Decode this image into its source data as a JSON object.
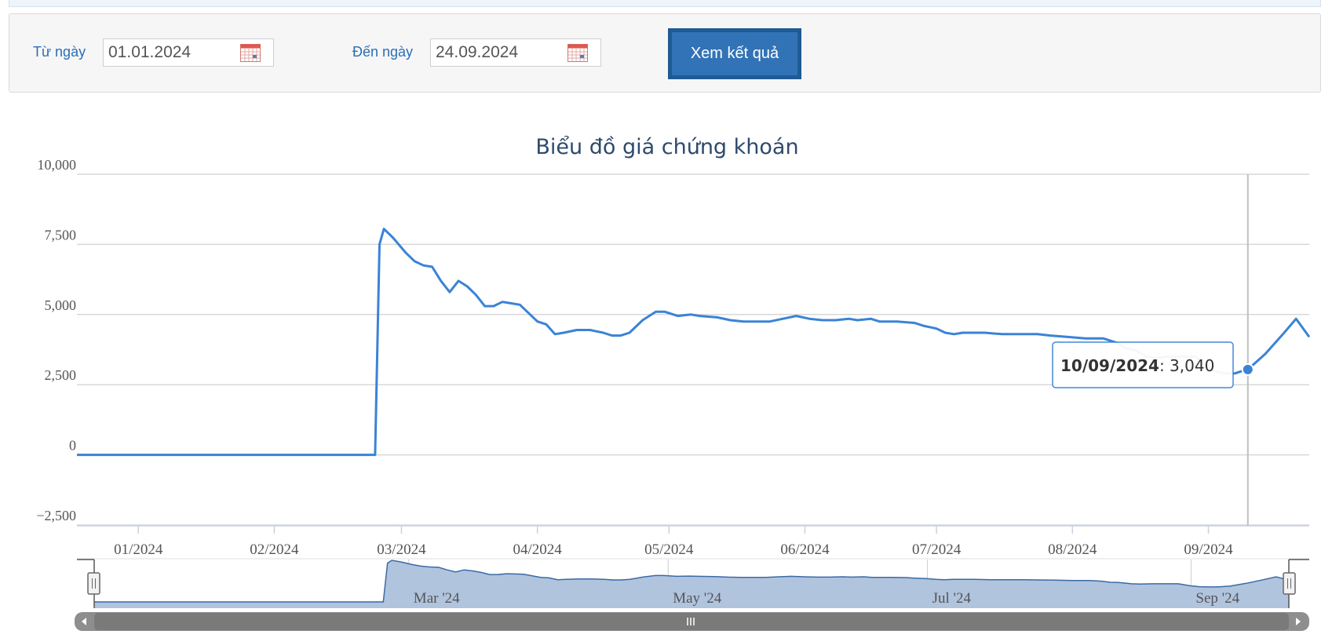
{
  "filter": {
    "from_label": "Từ ngày",
    "from_value": "01.01.2024",
    "to_label": "Đến ngày",
    "to_value": "24.09.2024",
    "submit_label": "Xem kết quả"
  },
  "chart_data": {
    "type": "line",
    "title": "Biểu đồ giá chứng khoán",
    "ylim": [
      -2500,
      10000
    ],
    "y_ticks": [
      -2500,
      0,
      2500,
      5000,
      7500,
      10000
    ],
    "y_tick_labels": [
      "−2,500",
      "0",
      "2,500",
      "5,000",
      "7,500",
      "10,000"
    ],
    "x_range": [
      "2023-12-18",
      "2024-09-24"
    ],
    "x_ticks": [
      {
        "date": "2024-01-01",
        "label": "01/2024"
      },
      {
        "date": "2024-02-01",
        "label": "02/2024"
      },
      {
        "date": "2024-03-01",
        "label": "03/2024"
      },
      {
        "date": "2024-04-01",
        "label": "04/2024"
      },
      {
        "date": "2024-05-01",
        "label": "05/2024"
      },
      {
        "date": "2024-06-01",
        "label": "06/2024"
      },
      {
        "date": "2024-07-01",
        "label": "07/2024"
      },
      {
        "date": "2024-08-01",
        "label": "08/2024"
      },
      {
        "date": "2024-09-01",
        "label": "09/2024"
      }
    ],
    "grid": true,
    "line_color": "#3a83d6",
    "series": [
      {
        "points": [
          [
            "2023-12-18",
            0
          ],
          [
            "2024-02-24",
            0
          ],
          [
            "2024-02-25",
            7500
          ],
          [
            "2024-02-26",
            8050
          ],
          [
            "2024-02-28",
            7750
          ],
          [
            "2024-03-02",
            7200
          ],
          [
            "2024-03-04",
            6900
          ],
          [
            "2024-03-06",
            6750
          ],
          [
            "2024-03-08",
            6700
          ],
          [
            "2024-03-10",
            6200
          ],
          [
            "2024-03-12",
            5800
          ],
          [
            "2024-03-14",
            6200
          ],
          [
            "2024-03-16",
            6000
          ],
          [
            "2024-03-18",
            5700
          ],
          [
            "2024-03-20",
            5300
          ],
          [
            "2024-03-22",
            5300
          ],
          [
            "2024-03-24",
            5450
          ],
          [
            "2024-03-26",
            5400
          ],
          [
            "2024-03-28",
            5350
          ],
          [
            "2024-04-01",
            4750
          ],
          [
            "2024-04-03",
            4650
          ],
          [
            "2024-04-05",
            4300
          ],
          [
            "2024-04-07",
            4350
          ],
          [
            "2024-04-10",
            4450
          ],
          [
            "2024-04-13",
            4450
          ],
          [
            "2024-04-16",
            4350
          ],
          [
            "2024-04-18",
            4250
          ],
          [
            "2024-04-20",
            4250
          ],
          [
            "2024-04-22",
            4350
          ],
          [
            "2024-04-25",
            4800
          ],
          [
            "2024-04-28",
            5100
          ],
          [
            "2024-04-30",
            5100
          ],
          [
            "2024-05-03",
            4950
          ],
          [
            "2024-05-06",
            5000
          ],
          [
            "2024-05-08",
            4950
          ],
          [
            "2024-05-12",
            4900
          ],
          [
            "2024-05-15",
            4800
          ],
          [
            "2024-05-18",
            4750
          ],
          [
            "2024-05-21",
            4750
          ],
          [
            "2024-05-24",
            4750
          ],
          [
            "2024-05-27",
            4850
          ],
          [
            "2024-05-30",
            4950
          ],
          [
            "2024-06-02",
            4850
          ],
          [
            "2024-06-05",
            4800
          ],
          [
            "2024-06-08",
            4800
          ],
          [
            "2024-06-11",
            4850
          ],
          [
            "2024-06-13",
            4800
          ],
          [
            "2024-06-16",
            4850
          ],
          [
            "2024-06-18",
            4750
          ],
          [
            "2024-06-22",
            4750
          ],
          [
            "2024-06-26",
            4700
          ],
          [
            "2024-06-28",
            4600
          ],
          [
            "2024-07-01",
            4500
          ],
          [
            "2024-07-03",
            4350
          ],
          [
            "2024-07-05",
            4300
          ],
          [
            "2024-07-07",
            4350
          ],
          [
            "2024-07-12",
            4350
          ],
          [
            "2024-07-16",
            4300
          ],
          [
            "2024-07-20",
            4300
          ],
          [
            "2024-07-24",
            4300
          ],
          [
            "2024-07-27",
            4250
          ],
          [
            "2024-07-31",
            4200
          ],
          [
            "2024-08-04",
            4150
          ],
          [
            "2024-08-08",
            4150
          ],
          [
            "2024-08-11",
            4000
          ],
          [
            "2024-08-13",
            3800
          ],
          [
            "2024-08-15",
            3750
          ],
          [
            "2024-08-18",
            3500
          ],
          [
            "2024-08-20",
            3450
          ],
          [
            "2024-08-23",
            3500
          ],
          [
            "2024-08-26",
            3500
          ],
          [
            "2024-08-29",
            3500
          ],
          [
            "2024-09-01",
            3100
          ],
          [
            "2024-09-03",
            2950
          ],
          [
            "2024-09-05",
            2900
          ],
          [
            "2024-09-07",
            2900
          ],
          [
            "2024-09-08",
            2950
          ],
          [
            "2024-09-09",
            3000
          ],
          [
            "2024-09-10",
            3040
          ],
          [
            "2024-09-14",
            3600
          ],
          [
            "2024-09-18",
            4300
          ],
          [
            "2024-09-21",
            4850
          ],
          [
            "2024-09-24",
            4200
          ]
        ]
      }
    ],
    "crosshair_date": "2024-09-10",
    "tooltip": {
      "date": "10/09/2024",
      "value": "3,040"
    },
    "navigator": {
      "labels": [
        {
          "date": "2024-03-01",
          "label": "Mar '24"
        },
        {
          "date": "2024-05-01",
          "label": "May '24"
        },
        {
          "date": "2024-07-01",
          "label": "Jul '24"
        },
        {
          "date": "2024-09-01",
          "label": "Sep '24"
        }
      ],
      "fill_color": "#b1c4de",
      "stroke_color": "#3a6aa6"
    }
  }
}
